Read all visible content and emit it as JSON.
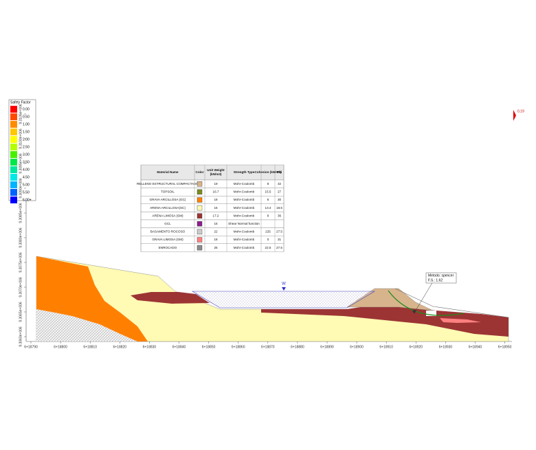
{
  "legend": {
    "title": "Safety Factor",
    "items": [
      {
        "label": "0.00",
        "color": "#ff0000"
      },
      {
        "label": "0.50",
        "color": "#ff4a00"
      },
      {
        "label": "1.00",
        "color": "#ff8c00"
      },
      {
        "label": "1.50",
        "color": "#ffc800"
      },
      {
        "label": "2.00",
        "color": "#ffff00"
      },
      {
        "label": "2.50",
        "color": "#b4ff00"
      },
      {
        "label": "3.00",
        "color": "#46f000"
      },
      {
        "label": "3.50",
        "color": "#00e84a"
      },
      {
        "label": "4.00",
        "color": "#00e8a0"
      },
      {
        "label": "4.50",
        "color": "#00e8e8"
      },
      {
        "label": "5.00",
        "color": "#00b4ff"
      },
      {
        "label": "5.50",
        "color": "#0064ff"
      },
      {
        "label": "6.00+",
        "color": "#0000ff"
      }
    ]
  },
  "table": {
    "headers": [
      "Material Name",
      "Color",
      "Unit Weight (kN/m3)",
      "Strength Type",
      "Cohesion (kN/m2)",
      "Phi"
    ],
    "rows": [
      {
        "name": "RELLENO ESTRUCTURAL COMPACTADO",
        "color": "#d8b48c",
        "weight": "19",
        "strength": "Mohr-Coulomb",
        "cohesion": "8",
        "phi": "32"
      },
      {
        "name": "TOPSOIL",
        "color": "#7a8c1e",
        "weight": "16.7",
        "strength": "Mohr-Coulomb",
        "cohesion": "15.5",
        "phi": "27"
      },
      {
        "name": "GRAVA ARCILLOSA (GC)",
        "color": "#ff8000",
        "weight": "18",
        "strength": "Mohr-Coulomb",
        "cohesion": "5",
        "phi": "30"
      },
      {
        "name": "ARENA ARCILLOSA(SC)",
        "color": "#fffab4",
        "weight": "15",
        "strength": "Mohr-Coulomb",
        "cohesion": "13.4",
        "phi": "18.5"
      },
      {
        "name": "ARENA LIMOSA (SM)",
        "color": "#9c3434",
        "weight": "17.2",
        "strength": "Mohr-Coulomb",
        "cohesion": "8",
        "phi": "36"
      },
      {
        "name": "GCL",
        "color": "#8c1e8c",
        "weight": "15",
        "strength": "Shear Normal function"
      },
      {
        "name": "BASAMENTO ROCOSO",
        "color": "#cccccc",
        "weight": "22",
        "strength": "Mohr-Coulomb",
        "cohesion": "225",
        "phi": "27.5"
      },
      {
        "name": "GRAVA LIMOSA (GM)",
        "color": "#ff8080",
        "weight": "18",
        "strength": "Mohr-Coulomb",
        "cohesion": "0",
        "phi": "31"
      },
      {
        "name": "ENROCADO",
        "color": "#8c8c8c",
        "weight": "25",
        "strength": "Mohr-Coulomb",
        "cohesion": "22.5",
        "phi": "27.5"
      }
    ]
  },
  "x_axis": [
    "6+18790",
    "6+18800",
    "6+18810",
    "6+18820",
    "6+18830",
    "6+18840",
    "6+18850",
    "6+18860",
    "6+18870",
    "6+18880",
    "6+18890",
    "6+18900",
    "6+18910",
    "6+18920",
    "6+18930",
    "6+18940",
    "6+18950"
  ],
  "y_axis": [
    "9.3060e+006",
    "9.3065e+006",
    "9.3070e+006",
    "9.3075e+006",
    "9.3080e+006",
    "9.3085e+006",
    "9.3090e+006",
    "9.3095e+006",
    "9.3100e+006",
    "9.3105e+006"
  ],
  "annotations": {
    "water": "W",
    "method": "Metodo: spencer",
    "fs": "F.S.: 1.62",
    "marker": "0.19"
  }
}
